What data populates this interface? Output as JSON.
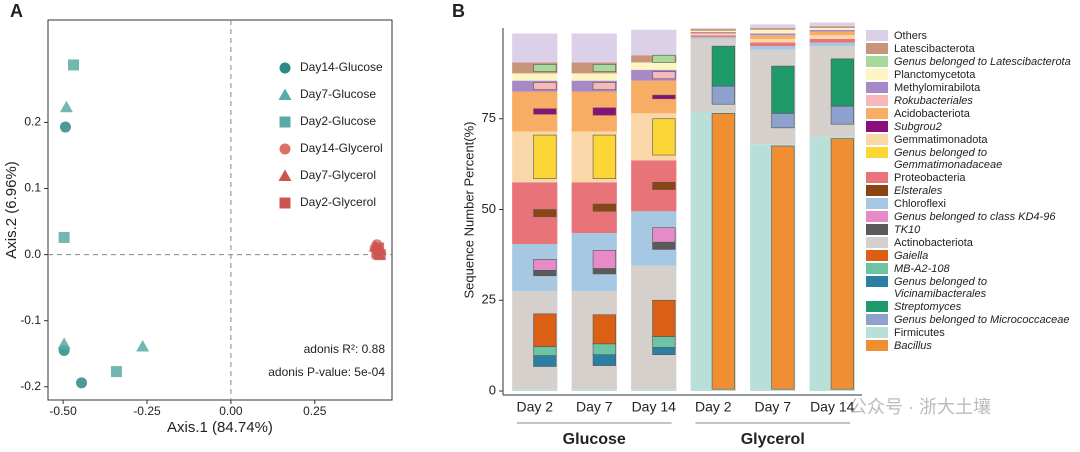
{
  "chart_data": [
    {
      "type": "scatter",
      "panel": "A",
      "x_label": "Axis.1 (84.74%)",
      "y_label": "Axis.2 (6.96%)",
      "xlim": [
        -0.545,
        0.48
      ],
      "ylim": [
        -0.22,
        0.355
      ],
      "xticks": [
        {
          "value": -0.5,
          "label": "-0.50"
        },
        -0.25,
        {
          "value": 0,
          "label": "0.00"
        },
        0.25
      ],
      "yticks": [
        -0.2,
        -0.1,
        {
          "value": 0,
          "label": "0.0"
        },
        0.1,
        0.2
      ],
      "reference_lines": true,
      "annotations": [
        "adonis R²: 0.88",
        "adonis P-value: 5e-04"
      ],
      "series": [
        {
          "name": "Day14-Glucose",
          "color": "#2a8a86",
          "marker": "circle",
          "x": [
            -0.493,
            -0.497,
            -0.445
          ],
          "values": [
            0.193,
            -0.145,
            -0.194
          ]
        },
        {
          "name": "Day7-Glucose",
          "color": "#5aaaa6",
          "marker": "triangle",
          "x": [
            -0.49,
            -0.497,
            -0.263
          ],
          "values": [
            0.223,
            -0.135,
            -0.139
          ]
        },
        {
          "name": "Day2-Glucose",
          "color": "#5aaaa6",
          "marker": "square",
          "x": [
            -0.469,
            -0.497,
            -0.341
          ],
          "values": [
            0.287,
            0.026,
            -0.177
          ]
        },
        {
          "name": "Day14-Glycerol",
          "color": "#dc6f66",
          "marker": "circle",
          "x": [
            0.43,
            0.44,
            0.435
          ],
          "values": [
            0.01,
            0.005,
            0.015
          ]
        },
        {
          "name": "Day7-Glycerol",
          "color": "#cc5550",
          "marker": "triangle",
          "x": [
            0.44,
            0.445,
            0.43
          ],
          "values": [
            0.0,
            0.008,
            0.012
          ]
        },
        {
          "name": "Day2-Glycerol",
          "color": "#cc5550",
          "marker": "square",
          "x": [
            0.435,
            0.445,
            0.44
          ],
          "values": [
            0.003,
            0.0,
            0.01
          ]
        }
      ]
    },
    {
      "type": "bar",
      "stacked": true,
      "panel": "B",
      "y_label": "Sequence Number Percent(%)",
      "ylim": [
        0,
        100
      ],
      "yticks": [
        0,
        25,
        50,
        75
      ],
      "groups": [
        {
          "name": "Glucose",
          "categories": [
            "Day 2",
            "Day 7",
            "Day 14"
          ]
        },
        {
          "name": "Glycerol",
          "categories": [
            "Day 2",
            "Day 7",
            "Day 14"
          ]
        }
      ],
      "series": [
        {
          "name": "Firmicutes",
          "color": "#b9e0d8",
          "values": [
            0.5,
            0.5,
            0.5,
            77,
            68,
            70
          ]
        },
        {
          "name": "Actinobacteriota",
          "color": "#d5d0cc",
          "values": [
            27,
            27,
            34,
            20,
            26,
            25
          ]
        },
        {
          "name": "Chloroflexi",
          "color": "#a6c8e2",
          "values": [
            13,
            16,
            15,
            0.5,
            1,
            1
          ]
        },
        {
          "name": "Proteobacteria",
          "color": "#e8747a",
          "values": [
            17,
            14,
            14,
            0.5,
            1,
            1
          ]
        },
        {
          "name": "Gemmatimonadota",
          "color": "#f9d7a8",
          "values": [
            14,
            14,
            13,
            0.3,
            1,
            1
          ]
        },
        {
          "name": "Acidobacteriota",
          "color": "#f7ad64",
          "values": [
            11,
            11,
            9,
            0.3,
            1,
            1
          ]
        },
        {
          "name": "Methylomirabilota",
          "color": "#a889c8",
          "values": [
            3,
            3,
            3,
            0.3,
            0.5,
            0.5
          ]
        },
        {
          "name": "Planctomycetota",
          "color": "#fdf6c3",
          "values": [
            2,
            2,
            2,
            0.3,
            1,
            0.5
          ]
        },
        {
          "name": "Latescibacterota",
          "color": "#c9957a",
          "values": [
            3,
            3,
            2,
            0.5,
            0.5,
            0.5
          ]
        },
        {
          "name": "Others",
          "color": "#dcd0e8",
          "values": [
            8,
            8,
            7,
            0.3,
            1,
            1
          ]
        }
      ],
      "genera": [
        {
          "name": "Genus belonged to Latescibacterota",
          "parent": "Latescibacterota",
          "color": "#a8d89a",
          "values": [
            2,
            2,
            2,
            0,
            0,
            0
          ]
        },
        {
          "name": "Rokubacteriales",
          "parent": "Methylomirabilota",
          "color": "#f7b8bc",
          "values": [
            2,
            2,
            2,
            0,
            0,
            0
          ]
        },
        {
          "name": "Subgrou2",
          "parent": "Acidobacteriota",
          "color": "#8b0f7a",
          "values": [
            1.5,
            2,
            1,
            0,
            0,
            0
          ]
        },
        {
          "name": "Genus belonged to Gemmatimonadaceae",
          "parent": "Gemmatimonadota",
          "color": "#fcd634",
          "values": [
            12,
            12,
            10,
            0,
            0,
            0
          ]
        },
        {
          "name": "Elsterales",
          "parent": "Proteobacteria",
          "color": "#8b4513",
          "values": [
            2,
            2,
            2,
            0,
            0,
            0
          ]
        },
        {
          "name": "Genus belonged to class KD4-96",
          "parent": "Chloroflexi",
          "color": "#e68ac8",
          "values": [
            3,
            5,
            4,
            0,
            0,
            0
          ]
        },
        {
          "name": "TK10",
          "parent": "Chloroflexi",
          "color": "#5a5a5a",
          "values": [
            1.5,
            1.5,
            2,
            0,
            0,
            0
          ]
        },
        {
          "name": "Gaiella",
          "parent": "Actinobacteriota",
          "color": "#db6013",
          "values": [
            9,
            8,
            10,
            0,
            0,
            0
          ]
        },
        {
          "name": "MB-A2-108",
          "parent": "Actinobacteriota",
          "color": "#6cc4a4",
          "values": [
            2.5,
            3,
            3,
            0,
            0,
            0
          ]
        },
        {
          "name": "Genus belonged to Vicinamibacterales",
          "parent": "Actinobacteriota",
          "color": "#2a7fa3",
          "values": [
            3,
            3,
            2,
            0,
            0,
            0
          ]
        },
        {
          "name": "Streptomyces",
          "parent": "Actinobacteriota",
          "color": "#1f9a6a",
          "values": [
            0,
            0,
            0,
            11,
            13,
            13
          ]
        },
        {
          "name": "Genus belonged to Micrococcaceae",
          "parent": "Actinobacteriota",
          "color": "#8ea0cc",
          "values": [
            0,
            0,
            0,
            5,
            4,
            5
          ]
        },
        {
          "name": "Bacillus",
          "parent": "Firmicutes",
          "color": "#ef8e32",
          "values": [
            0,
            0,
            0,
            76,
            67,
            69
          ]
        }
      ],
      "watermark": "公众号 · 浙大土壤"
    }
  ]
}
